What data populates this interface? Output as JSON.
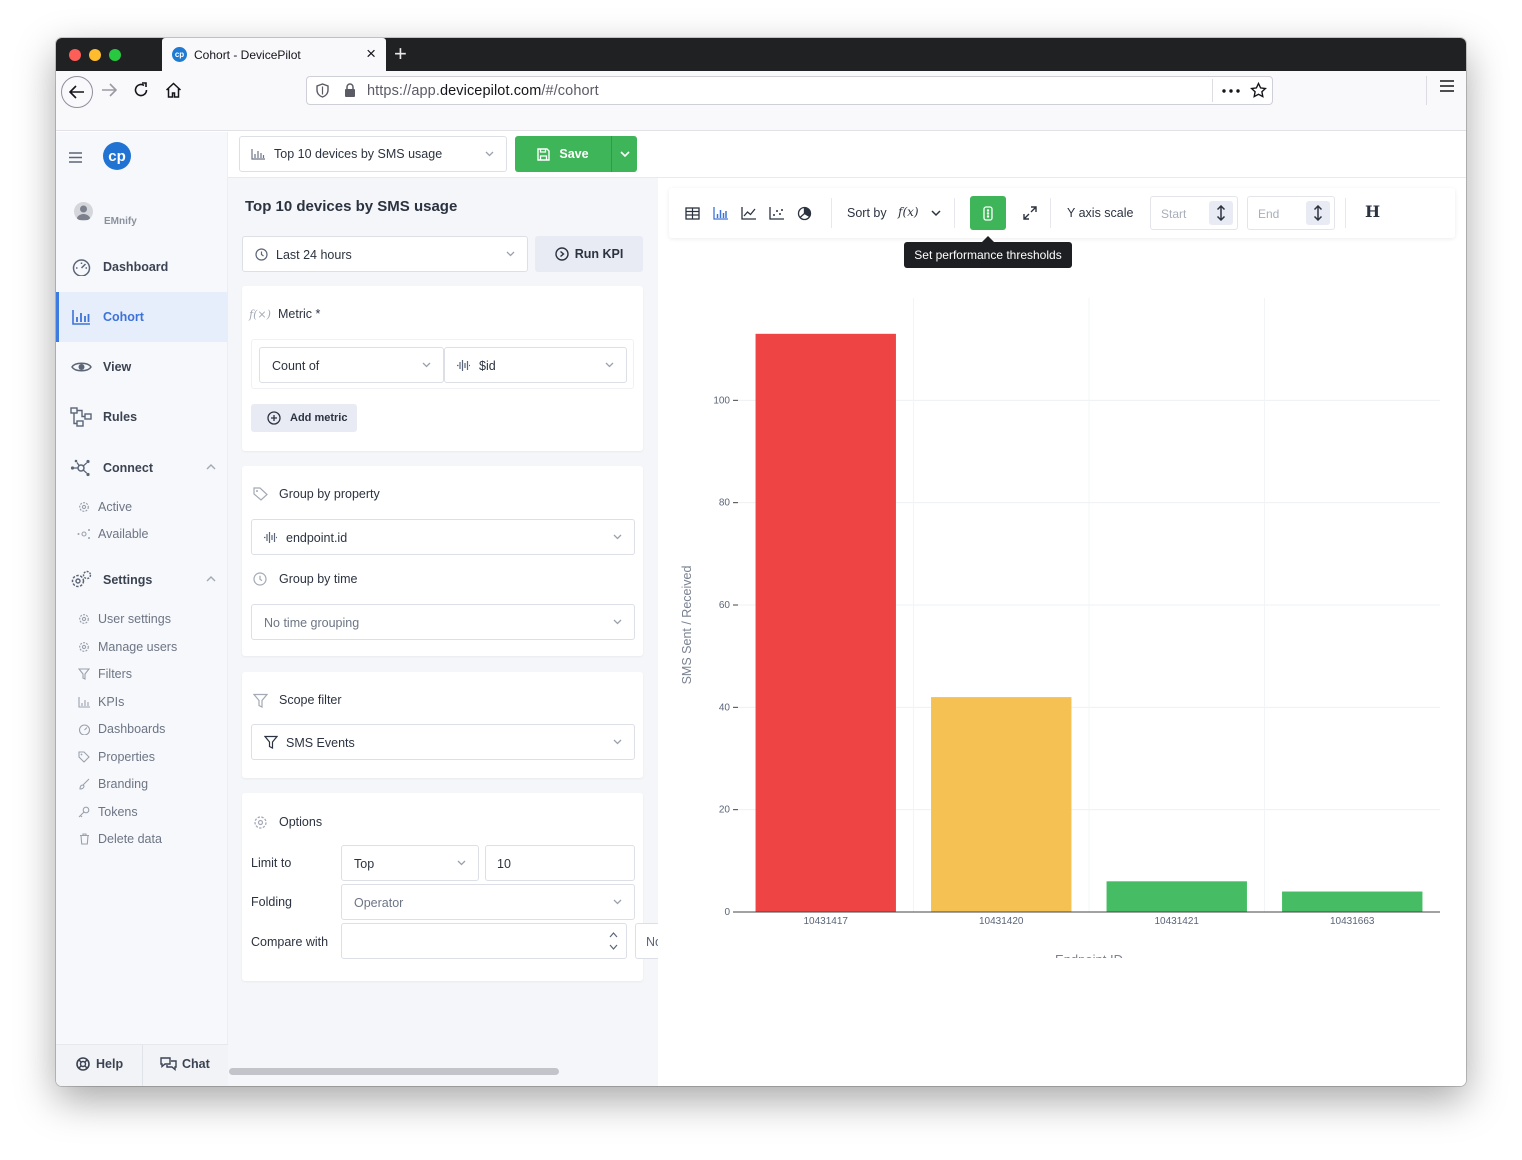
{
  "browser": {
    "tab_title": "Cohort - DevicePilot",
    "url_prefix": "https://app.",
    "url_domain": "devicepilot.com",
    "url_path": "/#/cohort"
  },
  "sidebar": {
    "logo_text": "cp",
    "user": "EMnify",
    "items": [
      {
        "label": "Dashboard",
        "icon": "gauge-icon"
      },
      {
        "label": "Cohort",
        "icon": "bar-chart-icon",
        "active": true
      },
      {
        "label": "View",
        "icon": "eye-icon"
      },
      {
        "label": "Rules",
        "icon": "rules-flow-icon"
      },
      {
        "label": "Connect",
        "icon": "connect-icon"
      },
      {
        "label": "Settings",
        "icon": "gears-icon"
      }
    ],
    "connect_sub": [
      {
        "label": "Active",
        "icon": "gear-small-icon"
      },
      {
        "label": "Available",
        "icon": "connect-small-icon"
      }
    ],
    "settings_sub": [
      {
        "label": "User settings",
        "icon": "gear-small-icon"
      },
      {
        "label": "Manage users",
        "icon": "gear-small-icon"
      },
      {
        "label": "Filters",
        "icon": "funnel-small-icon"
      },
      {
        "label": "KPIs",
        "icon": "bar-small-icon"
      },
      {
        "label": "Dashboards",
        "icon": "gauge-small-icon"
      },
      {
        "label": "Properties",
        "icon": "tag-small-icon"
      },
      {
        "label": "Branding",
        "icon": "brush-small-icon"
      },
      {
        "label": "Tokens",
        "icon": "key-small-icon"
      },
      {
        "label": "Delete data",
        "icon": "trash-small-icon"
      }
    ],
    "footer": {
      "help": "Help",
      "chat": "Chat"
    }
  },
  "header": {
    "kpi_select": "Top 10 devices by SMS usage",
    "save_label": "Save"
  },
  "panel": {
    "title": "Top 10 devices by SMS usage",
    "time_range": "Last 24 hours",
    "run_label": "Run KPI",
    "metric": {
      "heading": "Metric *",
      "aggregation": "Count of",
      "property": "$id",
      "add_label": "Add metric"
    },
    "group": {
      "property_heading": "Group by property",
      "property_value": "endpoint.id",
      "time_heading": "Group by time",
      "time_value": "No time grouping"
    },
    "scope": {
      "heading": "Scope filter",
      "value": "SMS Events"
    },
    "options": {
      "heading": "Options",
      "limit_label": "Limit to",
      "limit_mode": "Top",
      "limit_value": "10",
      "folding_label": "Folding",
      "folding_placeholder": "Operator",
      "compare_label": "Compare with",
      "compare_value": "",
      "overflow_text": "No"
    }
  },
  "toolbar": {
    "sort_label": "Sort by",
    "sort_fn": "f(x)",
    "y_axis_label": "Y axis scale",
    "start_placeholder": "Start",
    "end_placeholder": "End",
    "heading_glyph": "H",
    "tooltip": "Set performance thresholds"
  },
  "chart_data": {
    "type": "bar",
    "categories": [
      "10431417",
      "10431420",
      "10431421",
      "10431663"
    ],
    "values": [
      113,
      42,
      6,
      4
    ],
    "colors": [
      "#ef4444",
      "#f4c152",
      "#46bd64",
      "#46bd64"
    ],
    "xlabel": "Endpoint ID",
    "ylabel": "SMS Sent / Received",
    "ylim": [
      0,
      120
    ],
    "yticks": [
      0,
      20,
      40,
      60,
      80,
      100
    ],
    "grid": true,
    "legend": "none"
  }
}
